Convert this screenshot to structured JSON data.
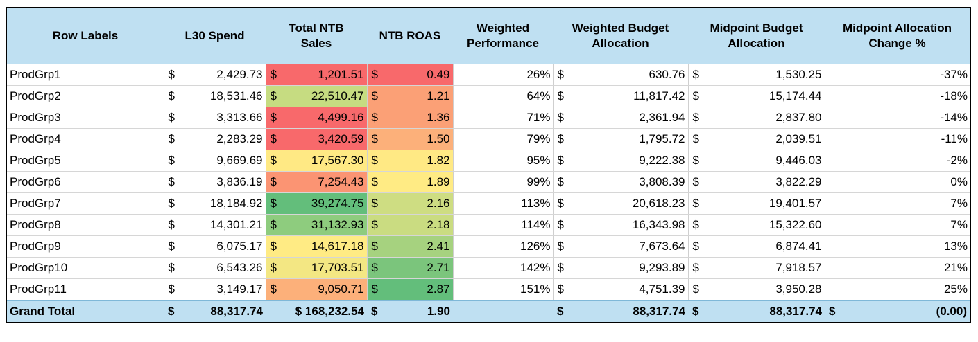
{
  "headers": [
    "Row Labels",
    "L30 Spend",
    "Total NTB\nSales",
    "NTB ROAS",
    "Weighted\nPerformance",
    "Weighted Budget\nAllocation",
    "Midpoint Budget\nAllocation",
    "Midpoint Allocation\nChange %"
  ],
  "currency_symbol": "$",
  "colors": {
    "header_bg": "#bfe0f2",
    "red": "#f8696b",
    "orange": "#fba076",
    "yellow": "#ffe984",
    "light_green": "#c6dc81",
    "green": "#63be7b"
  },
  "rows": [
    {
      "label": "ProdGrp1",
      "spend": "2,429.73",
      "sales": "1,201.51",
      "sales_color": "#f8696b",
      "roas": "0.49",
      "roas_color": "#f8696b",
      "perf": "26%",
      "wba": "630.76",
      "mba": "1,530.25",
      "change": "-37%"
    },
    {
      "label": "ProdGrp2",
      "spend": "18,531.46",
      "sales": "22,510.47",
      "sales_color": "#c6dc81",
      "roas": "1.21",
      "roas_color": "#fba076",
      "perf": "64%",
      "wba": "11,817.42",
      "mba": "15,174.44",
      "change": "-18%"
    },
    {
      "label": "ProdGrp3",
      "spend": "3,313.66",
      "sales": "4,499.16",
      "sales_color": "#f8696b",
      "roas": "1.36",
      "roas_color": "#fba076",
      "perf": "71%",
      "wba": "2,361.94",
      "mba": "2,837.80",
      "change": "-14%"
    },
    {
      "label": "ProdGrp4",
      "spend": "2,283.29",
      "sales": "3,420.59",
      "sales_color": "#f8696b",
      "roas": "1.50",
      "roas_color": "#fcb07a",
      "perf": "79%",
      "wba": "1,795.72",
      "mba": "2,039.51",
      "change": "-11%"
    },
    {
      "label": "ProdGrp5",
      "spend": "9,669.69",
      "sales": "17,567.30",
      "sales_color": "#ffe984",
      "roas": "1.82",
      "roas_color": "#ffe984",
      "perf": "95%",
      "wba": "9,222.38",
      "mba": "9,446.03",
      "change": "-2%"
    },
    {
      "label": "ProdGrp6",
      "spend": "3,836.19",
      "sales": "7,254.43",
      "sales_color": "#fb9473",
      "roas": "1.89",
      "roas_color": "#ffeb84",
      "perf": "99%",
      "wba": "3,808.39",
      "mba": "3,822.29",
      "change": "0%"
    },
    {
      "label": "ProdGrp7",
      "spend": "18,184.92",
      "sales": "39,274.75",
      "sales_color": "#63be7b",
      "roas": "2.16",
      "roas_color": "#cedd82",
      "perf": "113%",
      "wba": "20,618.23",
      "mba": "19,401.57",
      "change": "7%"
    },
    {
      "label": "ProdGrp8",
      "spend": "14,301.21",
      "sales": "31,132.93",
      "sales_color": "#8ecc7e",
      "roas": "2.18",
      "roas_color": "#cadc81",
      "perf": "114%",
      "wba": "16,343.98",
      "mba": "15,322.60",
      "change": "7%"
    },
    {
      "label": "ProdGrp9",
      "spend": "6,075.17",
      "sales": "14,617.18",
      "sales_color": "#ffeb84",
      "roas": "2.41",
      "roas_color": "#a6d27f",
      "perf": "126%",
      "wba": "7,673.64",
      "mba": "6,874.41",
      "change": "13%"
    },
    {
      "label": "ProdGrp10",
      "spend": "6,543.26",
      "sales": "17,703.51",
      "sales_color": "#f3e783",
      "roas": "2.71",
      "roas_color": "#7bc57c",
      "perf": "142%",
      "wba": "9,293.89",
      "mba": "7,918.57",
      "change": "21%"
    },
    {
      "label": "ProdGrp11",
      "spend": "3,149.17",
      "sales": "9,050.71",
      "sales_color": "#fcb07a",
      "roas": "2.87",
      "roas_color": "#63be7b",
      "perf": "151%",
      "wba": "4,751.39",
      "mba": "3,950.28",
      "change": "25%"
    }
  ],
  "total": {
    "label": "Grand Total",
    "spend": "88,317.74",
    "sales": "$ 168,232.54",
    "roas": "1.90",
    "wba": "88,317.74",
    "mba": "88,317.74",
    "change": "(0.00)"
  }
}
